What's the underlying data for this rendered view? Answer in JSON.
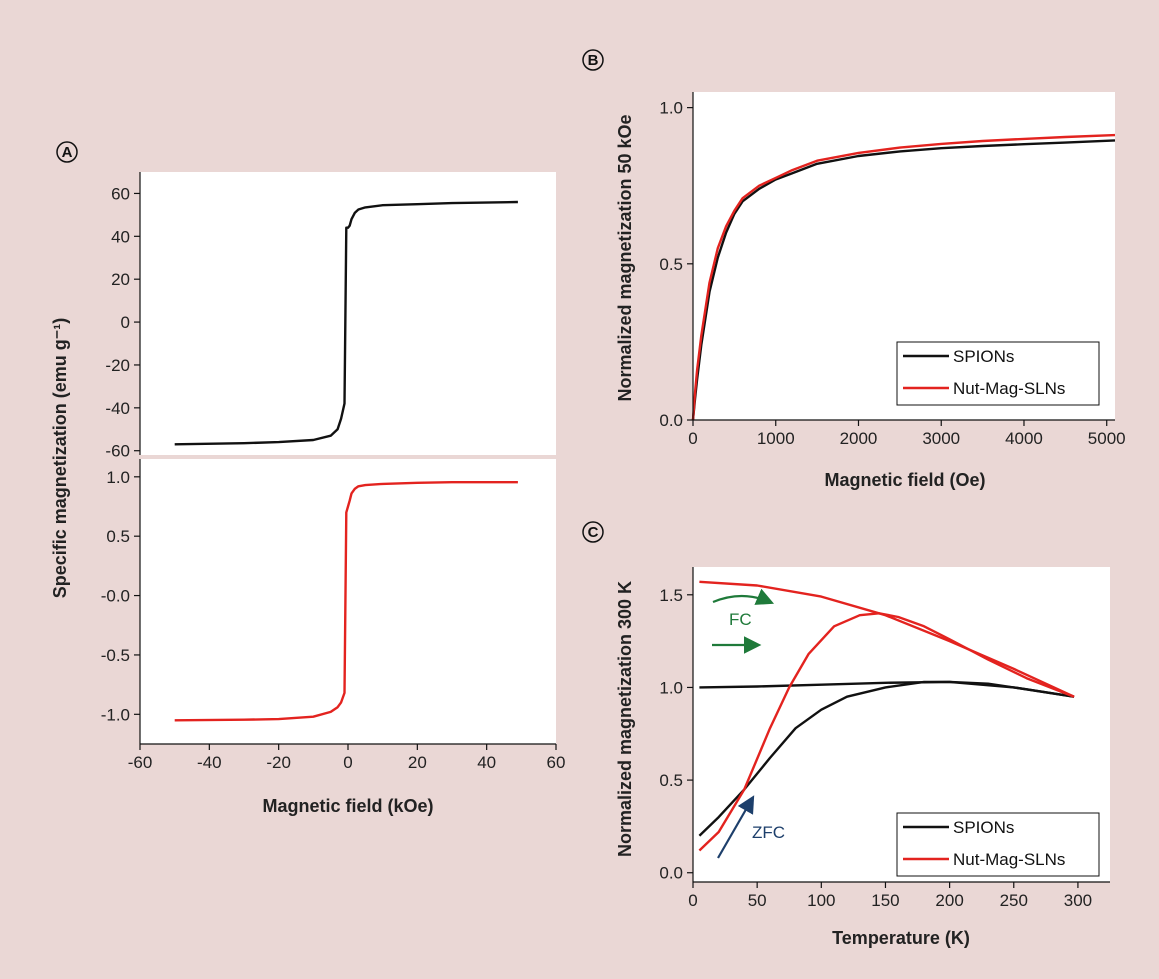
{
  "colors": {
    "background": "#ead7d5",
    "plot_bg": "#ffffff",
    "spions": "#111111",
    "nut_mag_sln": "#e3231f",
    "fc_arrow": "#1f7a3a",
    "zfc_arrow": "#1d3f6b"
  },
  "panels": {
    "a": {
      "letter": "A"
    },
    "b": {
      "letter": "B"
    },
    "c": {
      "letter": "C"
    }
  },
  "annotations": {
    "fc": "FC",
    "zfc": "ZFC"
  },
  "chart_data": [
    {
      "id": "A-top",
      "type": "line",
      "panel": "A",
      "ylabel": "Specific magnetization (emu g⁻¹)",
      "xlim": [
        -60,
        60
      ],
      "ylim": [
        -62,
        70
      ],
      "yticks": [
        60,
        40,
        20,
        0,
        -20,
        -40,
        -60
      ],
      "grid": false,
      "series": [
        {
          "color": "#111111",
          "x": [
            -50,
            -30,
            -20,
            -10,
            -5,
            -3,
            -2,
            -1,
            -0.5,
            0,
            0.5,
            1,
            2,
            3,
            5,
            10,
            20,
            30,
            49
          ],
          "y": [
            -57,
            -56.5,
            -56,
            -55,
            -53,
            -50,
            -45,
            -38,
            44,
            44,
            45,
            48,
            51,
            52.5,
            53.5,
            54.5,
            55,
            55.5,
            56
          ]
        }
      ]
    },
    {
      "id": "A-bottom",
      "type": "line",
      "panel": "A",
      "xlabel": "Magnetic field (kOe)",
      "xlim": [
        -60,
        60
      ],
      "xticks": [
        -60,
        -40,
        -20,
        0,
        20,
        40,
        60
      ],
      "ylim": [
        -1.25,
        1.15
      ],
      "yticks": [
        1.0,
        0.5,
        -0.0,
        -0.5,
        -1.0
      ],
      "ytick_labels": [
        "1.0",
        "0.5",
        "-0.0",
        "-0.5",
        "-1.0"
      ],
      "grid": false,
      "series": [
        {
          "color": "#e3231f",
          "x": [
            -50,
            -30,
            -20,
            -10,
            -5,
            -3,
            -2,
            -1,
            -0.5,
            0,
            0.5,
            1,
            2,
            3,
            5,
            10,
            20,
            30,
            49
          ],
          "y": [
            -1.05,
            -1.045,
            -1.04,
            -1.02,
            -0.98,
            -0.94,
            -0.9,
            -0.82,
            0.7,
            0.75,
            0.8,
            0.86,
            0.9,
            0.92,
            0.93,
            0.94,
            0.95,
            0.955,
            0.955
          ]
        }
      ]
    },
    {
      "id": "B",
      "type": "line",
      "panel": "B",
      "xlabel": "Magnetic field (Oe)",
      "ylabel": "Normalized magnetization 50 kOe",
      "xlim": [
        0,
        5100
      ],
      "ylim": [
        0,
        1.05
      ],
      "xticks": [
        0,
        1000,
        2000,
        3000,
        4000,
        5000
      ],
      "yticks": [
        0.0,
        0.5,
        1.0
      ],
      "ytick_labels": [
        "0.0",
        "0.5",
        "1.0"
      ],
      "grid": false,
      "legend": "bottom-right",
      "series": [
        {
          "name": "SPIONs",
          "color": "#111111",
          "x": [
            0,
            25,
            50,
            100,
            200,
            300,
            400,
            500,
            600,
            800,
            1000,
            1200,
            1500,
            2000,
            2500,
            3000,
            3500,
            4000,
            4500,
            5100
          ],
          "y": [
            0.0,
            0.07,
            0.13,
            0.24,
            0.41,
            0.52,
            0.6,
            0.66,
            0.7,
            0.74,
            0.77,
            0.79,
            0.82,
            0.845,
            0.86,
            0.87,
            0.877,
            0.883,
            0.888,
            0.895
          ]
        },
        {
          "name": "Nut-Mag-SLNs",
          "color": "#e3231f",
          "x": [
            0,
            25,
            50,
            100,
            200,
            300,
            400,
            500,
            600,
            800,
            1000,
            1200,
            1500,
            2000,
            2500,
            3000,
            3500,
            4000,
            4500,
            5100
          ],
          "y": [
            0.0,
            0.09,
            0.16,
            0.27,
            0.44,
            0.55,
            0.62,
            0.67,
            0.71,
            0.75,
            0.775,
            0.8,
            0.83,
            0.855,
            0.872,
            0.884,
            0.893,
            0.9,
            0.906,
            0.912
          ]
        }
      ]
    },
    {
      "id": "C",
      "type": "line",
      "panel": "C",
      "xlabel": "Temperature (K)",
      "ylabel": "Normalized magnetization 300 K",
      "xlim": [
        0,
        325
      ],
      "ylim": [
        -0.05,
        1.65
      ],
      "xticks": [
        0,
        50,
        100,
        150,
        200,
        250,
        300
      ],
      "yticks": [
        0.0,
        0.5,
        1.0,
        1.5
      ],
      "ytick_labels": [
        "0.0",
        "0.5",
        "1.0",
        "1.5"
      ],
      "grid": false,
      "legend": "bottom-right",
      "series": [
        {
          "name": "SPIONs",
          "color": "#111111",
          "x": [
            5,
            50,
            100,
            150,
            200,
            250,
            297
          ],
          "y": [
            1.0,
            1.005,
            1.015,
            1.025,
            1.03,
            1.0,
            0.95
          ]
        },
        {
          "color": "#111111",
          "x": [
            5,
            20,
            40,
            60,
            80,
            100,
            120,
            150,
            180,
            200,
            230,
            260,
            297
          ],
          "y": [
            0.2,
            0.3,
            0.45,
            0.62,
            0.78,
            0.88,
            0.95,
            1.0,
            1.03,
            1.03,
            1.02,
            0.99,
            0.95
          ]
        },
        {
          "name": "Nut-Mag-SLNs",
          "color": "#e3231f",
          "x": [
            5,
            50,
            100,
            150,
            200,
            250,
            297
          ],
          "y": [
            1.57,
            1.55,
            1.49,
            1.39,
            1.25,
            1.1,
            0.95
          ]
        },
        {
          "color": "#e3231f",
          "x": [
            5,
            20,
            40,
            60,
            75,
            90,
            110,
            130,
            145,
            160,
            180,
            200,
            230,
            260,
            297
          ],
          "y": [
            0.12,
            0.22,
            0.45,
            0.78,
            1.0,
            1.18,
            1.33,
            1.39,
            1.4,
            1.38,
            1.33,
            1.26,
            1.15,
            1.05,
            0.95
          ]
        }
      ]
    }
  ]
}
